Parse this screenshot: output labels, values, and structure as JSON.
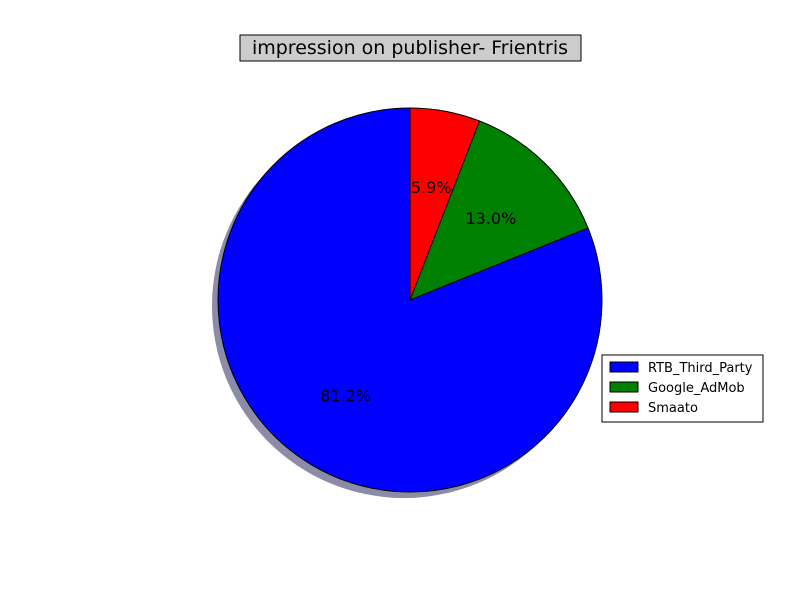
{
  "chart_data": {
    "type": "pie",
    "title": "impression on publisher- Frientris",
    "start_angle_deg": 90,
    "direction": "counterclockwise",
    "shadow": true,
    "slices": [
      {
        "label": "RTB_Third_Party",
        "value": 81.2,
        "pct_label": "81.2%",
        "color": "#0000ff"
      },
      {
        "label": "Google_AdMob",
        "value": 13.0,
        "pct_label": "13.0%",
        "color": "#008000"
      },
      {
        "label": "Smaato",
        "value": 5.9,
        "pct_label": "5.9%",
        "color": "#ff0000"
      }
    ],
    "legend": {
      "placement": "right",
      "entries": [
        "RTB_Third_Party",
        "Google_AdMob",
        "Smaato"
      ]
    },
    "title_box_color": "#cccccc",
    "shadow_color": "#7f7f9f"
  }
}
